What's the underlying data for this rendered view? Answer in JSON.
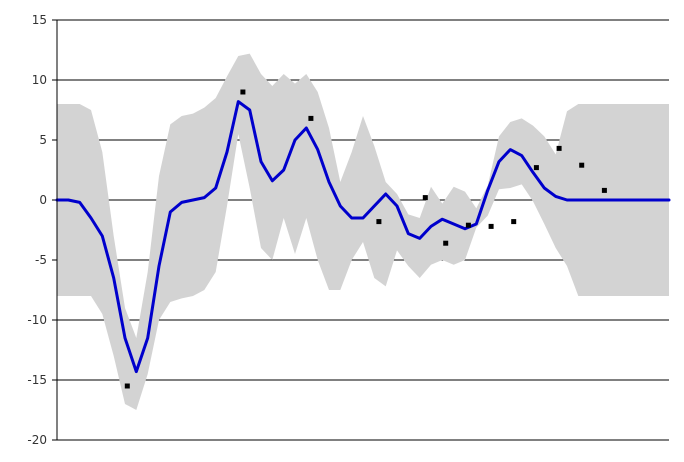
{
  "chart_data": {
    "type": "line",
    "title": "",
    "xlabel": "",
    "ylabel": "",
    "ylim": [
      -20,
      15
    ],
    "xlim": [
      0,
      54
    ],
    "grid": true,
    "legend": "none",
    "y_ticks": [
      {
        "value": 15,
        "label": "15"
      },
      {
        "value": 10,
        "label": "10"
      },
      {
        "value": 5,
        "label": "5"
      },
      {
        "value": 0,
        "label": "0"
      },
      {
        "value": -5,
        "label": "-5"
      },
      {
        "value": -10,
        "label": "-10"
      },
      {
        "value": -15,
        "label": "-15"
      },
      {
        "value": -20,
        "label": "-20"
      }
    ],
    "colors": {
      "mean_line": "#0000cc",
      "band": "#d3d3d3",
      "points": "#000000",
      "grid": "#000000",
      "axis": "#000000"
    },
    "series": [
      {
        "kind": "band",
        "x": [
          0,
          1,
          2,
          3,
          4,
          5,
          6,
          7,
          8,
          9,
          10,
          11,
          12,
          13,
          14,
          15,
          16,
          17,
          18,
          19,
          20,
          21,
          22,
          23,
          24,
          25,
          26,
          27,
          28,
          29,
          30,
          31,
          32,
          33,
          34,
          35,
          36,
          37,
          38,
          39,
          40,
          41,
          42,
          43,
          44,
          45,
          46,
          47,
          48,
          49,
          50,
          51,
          52,
          53,
          54
        ],
        "upper": [
          8,
          8,
          8,
          7.5,
          4,
          -3,
          -9,
          -11.5,
          -6,
          2,
          6.3,
          7,
          7.2,
          7.7,
          8.5,
          10.3,
          12,
          12.2,
          10.5,
          9.5,
          10.5,
          9.7,
          10.5,
          9,
          6,
          1.5,
          4,
          7,
          4.5,
          1.5,
          0.5,
          -1.2,
          -1.5,
          1.1,
          -0.3,
          1.1,
          0.7,
          -0.7,
          1.2,
          5.3,
          6.5,
          6.8,
          6.2,
          5.3,
          3.8,
          7.4,
          8,
          8,
          8,
          8,
          8,
          8,
          8,
          8,
          8
        ],
        "lower": [
          -8,
          -8,
          -8,
          -8,
          -9.5,
          -13,
          -17,
          -17.5,
          -14.5,
          -10,
          -8.5,
          -8.2,
          -8,
          -7.5,
          -6,
          -0.5,
          5.5,
          1,
          -4,
          -5,
          -1.5,
          -4.5,
          -1.5,
          -5,
          -7.5,
          -7.5,
          -5,
          -3.5,
          -6.5,
          -7.2,
          -4.2,
          -5.5,
          -6.5,
          -5.4,
          -5,
          -5.4,
          -5,
          -2.3,
          -1.3,
          0.9,
          1,
          1.3,
          -0.1,
          -2,
          -4,
          -5.5,
          -8,
          -8,
          -8,
          -8,
          -8,
          -8,
          -8,
          -8,
          -8
        ]
      },
      {
        "kind": "line",
        "x": [
          0,
          1,
          2,
          3,
          4,
          5,
          6,
          7,
          8,
          9,
          10,
          11,
          12,
          13,
          14,
          15,
          16,
          17,
          18,
          19,
          20,
          21,
          22,
          23,
          24,
          25,
          26,
          27,
          28,
          29,
          30,
          31,
          32,
          33,
          34,
          35,
          36,
          37,
          38,
          39,
          40,
          41,
          42,
          43,
          44,
          45,
          46,
          47,
          48,
          49,
          50,
          51,
          52,
          53,
          54
        ],
        "y": [
          0,
          0,
          -0.2,
          -1.5,
          -3,
          -6.5,
          -11.5,
          -14.3,
          -11.5,
          -5.5,
          -1,
          -0.2,
          0,
          0.2,
          1,
          4,
          8.2,
          7.5,
          3.2,
          1.6,
          2.5,
          5,
          6,
          4.2,
          1.5,
          -0.5,
          -1.5,
          -1.5,
          -0.5,
          0.5,
          -0.5,
          -2.8,
          -3.2,
          -2.2,
          -1.6,
          -2,
          -2.4,
          -2,
          0.8,
          3.2,
          4.2,
          3.7,
          2.3,
          1,
          0.3,
          0,
          0,
          0,
          0,
          0,
          0,
          0,
          0,
          0,
          0
        ]
      },
      {
        "kind": "points",
        "x": [
          6.2,
          16.4,
          22.4,
          28.4,
          32.5,
          34.3,
          36.3,
          38.3,
          40.3,
          42.3,
          44.3,
          46.3,
          48.3
        ],
        "y": [
          -15.5,
          9,
          6.8,
          -1.8,
          0.2,
          -3.6,
          -2.1,
          -2.2,
          -1.8,
          2.7,
          4.3,
          2.9,
          0.8
        ]
      }
    ]
  }
}
